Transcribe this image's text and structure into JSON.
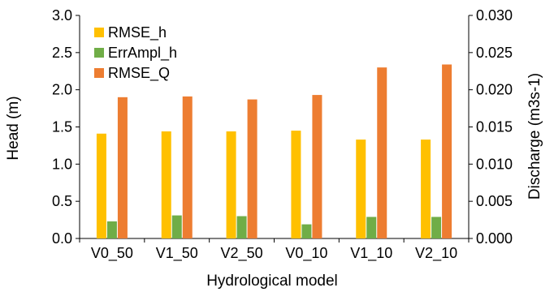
{
  "chart_data": {
    "type": "bar",
    "categories": [
      "V0_50",
      "V1_50",
      "V2_50",
      "V0_10",
      "V1_10",
      "V2_10"
    ],
    "xlabel": "Hydrological model",
    "ylabel": "Head (m)",
    "y2label": "Discharge (m3s-1)",
    "ylim": [
      0,
      3.0
    ],
    "y2lim": [
      0,
      0.03
    ],
    "yticks": [
      "0.0",
      "0.5",
      "1.0",
      "1.5",
      "2.0",
      "2.5",
      "3.0"
    ],
    "y2ticks": [
      "0.000",
      "0.005",
      "0.010",
      "0.015",
      "0.020",
      "0.025",
      "0.030"
    ],
    "grid": false,
    "legend_position": "top-left",
    "series": [
      {
        "name": "RMSE_h",
        "axis": "left",
        "color": "#FFC000",
        "values": [
          1.41,
          1.44,
          1.44,
          1.45,
          1.33,
          1.33
        ]
      },
      {
        "name": "ErrAmpl_h",
        "axis": "left",
        "color": "#70AD47",
        "values": [
          0.23,
          0.31,
          0.3,
          0.19,
          0.29,
          0.29
        ]
      },
      {
        "name": "RMSE_Q",
        "axis": "right",
        "color": "#ED7D31",
        "values": [
          0.019,
          0.0191,
          0.0187,
          0.0193,
          0.023,
          0.0234
        ]
      }
    ]
  }
}
